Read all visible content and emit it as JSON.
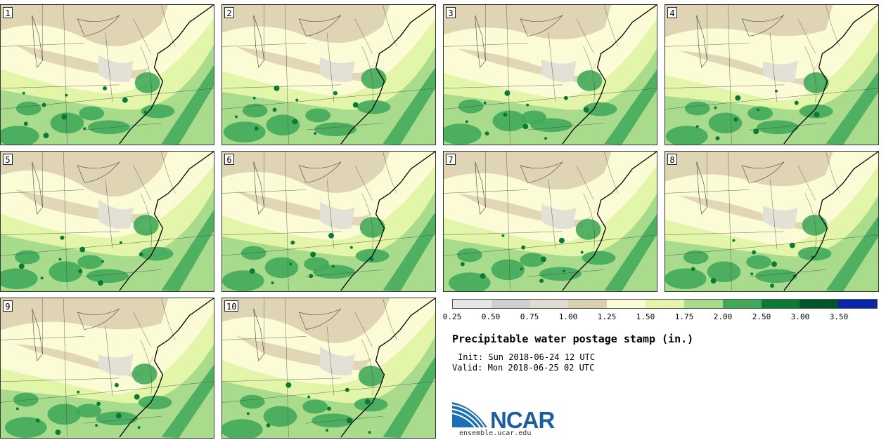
{
  "stamps": [
    {
      "label": "1"
    },
    {
      "label": "2"
    },
    {
      "label": "3"
    },
    {
      "label": "4"
    },
    {
      "label": "5"
    },
    {
      "label": "6"
    },
    {
      "label": "7"
    },
    {
      "label": "8"
    },
    {
      "label": "9"
    },
    {
      "label": "10"
    }
  ],
  "colorbar": {
    "colors": [
      "#e6e6e6",
      "#cfcfcf",
      "#e0dcd2",
      "#dccfb0",
      "#fbfbd6",
      "#e2f5a8",
      "#a8dc8c",
      "#41a85a",
      "#0a7a34",
      "#00552a",
      "#0a26a8"
    ],
    "labels": [
      "0.25",
      "0.50",
      "0.75",
      "1.00",
      "1.25",
      "1.50",
      "1.75",
      "2.00",
      "2.50",
      "3.00",
      "3.50"
    ]
  },
  "title": "Precipitable water postage stamp (in.)",
  "init": "Init: Sun 2018-06-24 12 UTC",
  "valid": "Valid: Mon 2018-06-25 02 UTC",
  "logo": {
    "text": "NCAR",
    "site": "ensemble.ucar.edu"
  }
}
